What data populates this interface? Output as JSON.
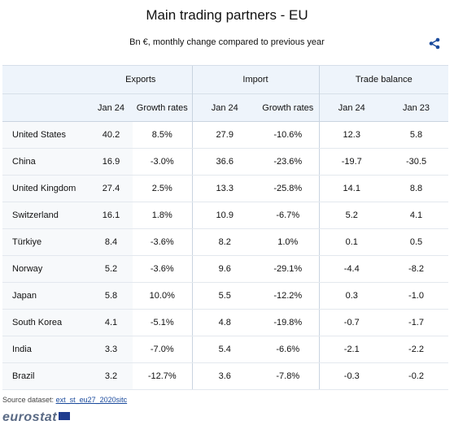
{
  "title": "Main trading partners - EU",
  "subtitle": "Bn €, monthly change compared to previous year",
  "share_icon": "share-icon",
  "groups": {
    "exports": "Exports",
    "import": "Import",
    "trade_balance": "Trade balance"
  },
  "columns": [
    "Jan 24",
    "Growth rates",
    "Jan 24",
    "Growth rates",
    "Jan 24",
    "Jan 23"
  ],
  "rows": [
    [
      "United States",
      "40.2",
      "8.5%",
      "27.9",
      "-10.6%",
      "12.3",
      "5.8"
    ],
    [
      "China",
      "16.9",
      "-3.0%",
      "36.6",
      "-23.6%",
      "-19.7",
      "-30.5"
    ],
    [
      "United Kingdom",
      "27.4",
      "2.5%",
      "13.3",
      "-25.8%",
      "14.1",
      "8.8"
    ],
    [
      "Switzerland",
      "16.1",
      "1.8%",
      "10.9",
      "-6.7%",
      "5.2",
      "4.1"
    ],
    [
      "Türkiye",
      "8.4",
      "-3.6%",
      "8.2",
      "1.0%",
      "0.1",
      "0.5"
    ],
    [
      "Norway",
      "5.2",
      "-3.6%",
      "9.6",
      "-29.1%",
      "-4.4",
      "-8.2"
    ],
    [
      "Japan",
      "5.8",
      "10.0%",
      "5.5",
      "-12.2%",
      "0.3",
      "-1.0"
    ],
    [
      "South Korea",
      "4.1",
      "-5.1%",
      "4.8",
      "-19.8%",
      "-0.7",
      "-1.7"
    ],
    [
      "India",
      "3.3",
      "-7.0%",
      "5.4",
      "-6.6%",
      "-2.1",
      "-2.2"
    ],
    [
      "Brazil",
      "3.2",
      "-12.7%",
      "3.6",
      "-7.8%",
      "-0.3",
      "-0.2"
    ]
  ],
  "source": {
    "label": "Source dataset:",
    "link": "ext_st_eu27_2020sitc"
  },
  "logo_text": "eurostat"
}
